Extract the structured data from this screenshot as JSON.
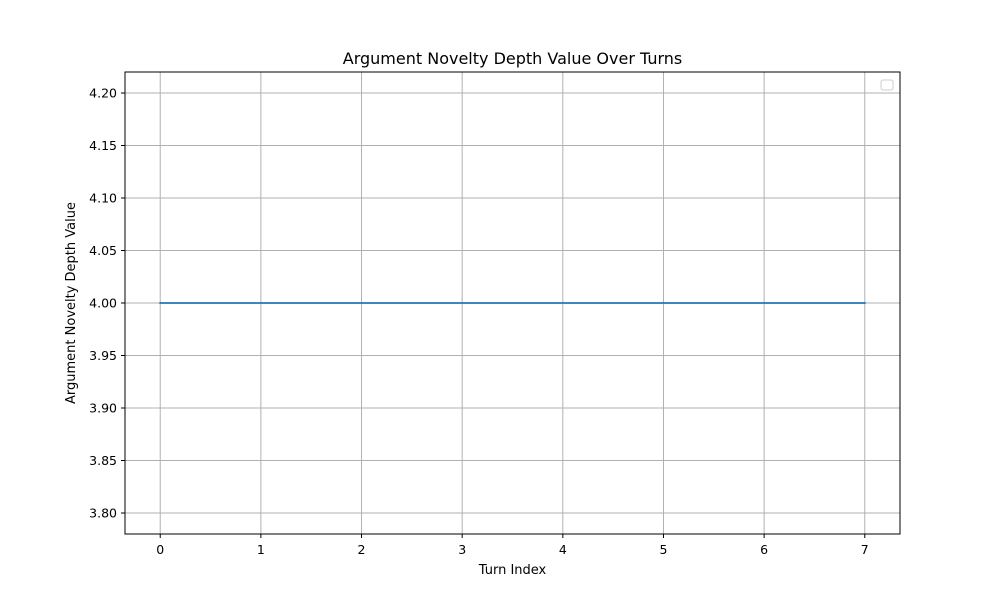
{
  "chart_data": {
    "type": "line",
    "title": "Argument Novelty Depth Value Over Turns",
    "xlabel": "Turn Index",
    "ylabel": "Argument Novelty Depth Value",
    "x": [
      0,
      1,
      2,
      3,
      4,
      5,
      6,
      7
    ],
    "series": [
      {
        "values": [
          4.0,
          4.0,
          4.0,
          4.0,
          4.0,
          4.0,
          4.0,
          4.0
        ],
        "color": "#1f77b4"
      }
    ],
    "xlim": [
      -0.35,
      7.35
    ],
    "ylim": [
      3.78,
      4.22
    ],
    "xticks": [
      0,
      1,
      2,
      3,
      4,
      5,
      6,
      7
    ],
    "xtick_labels": [
      "0",
      "1",
      "2",
      "3",
      "4",
      "5",
      "6",
      "7"
    ],
    "yticks": [
      3.8,
      3.85,
      3.9,
      3.95,
      4.0,
      4.05,
      4.1,
      4.15,
      4.2
    ],
    "ytick_labels": [
      "3.80",
      "3.85",
      "3.90",
      "3.95",
      "4.00",
      "4.05",
      "4.10",
      "4.15",
      "4.20"
    ],
    "grid": true,
    "grid_color": "#b0b0b0",
    "legend": {
      "placement": "top-right",
      "entries": []
    }
  }
}
